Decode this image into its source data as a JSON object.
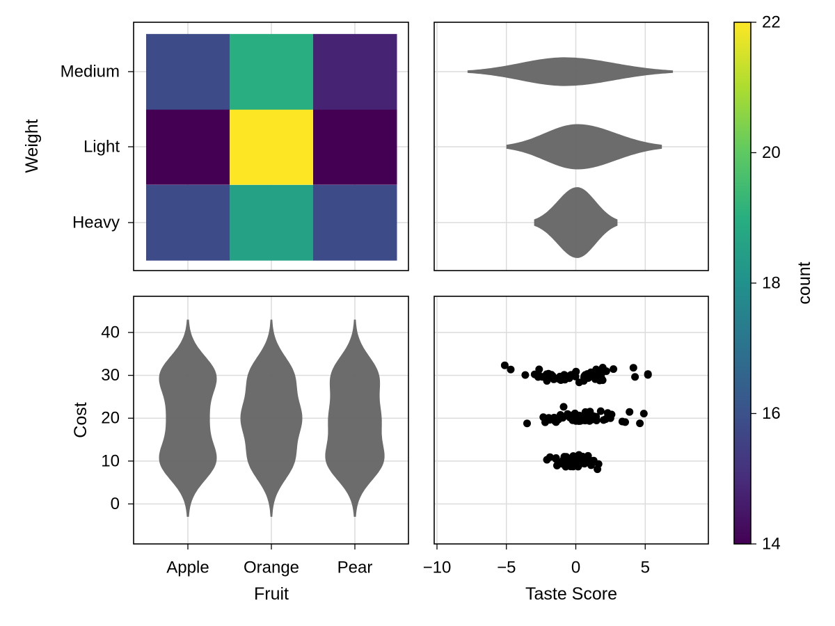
{
  "chart_data": [
    {
      "type": "heatmap",
      "x_categories": [
        "Apple",
        "Orange",
        "Pear"
      ],
      "y_categories": [
        "Heavy",
        "Light",
        "Medium"
      ],
      "ylabel": "Weight",
      "values": [
        [
          15.8,
          18.6,
          15.8
        ],
        [
          14.0,
          22.0,
          14.0
        ],
        [
          15.8,
          19.0,
          14.8
        ]
      ],
      "colormap": "viridis",
      "grid": true
    },
    {
      "type": "violin",
      "orientation": "horizontal",
      "categories": [
        "Heavy",
        "Light",
        "Medium"
      ],
      "x_range": [
        -10,
        9.5
      ],
      "fill": "#666666",
      "series": [
        {
          "category": "Heavy",
          "center": 0.1,
          "min": -3.0,
          "max": 3.0,
          "peak_width": 0.47
        },
        {
          "category": "Light",
          "center": 0.1,
          "min": -5.0,
          "max": 6.2,
          "peak_width": 0.3
        },
        {
          "category": "Medium",
          "center": -0.8,
          "min": -7.8,
          "max": 7.0,
          "peak_width": 0.19
        }
      ],
      "grid": true
    },
    {
      "type": "violin",
      "orientation": "vertical",
      "categories": [
        "Apple",
        "Orange",
        "Pear"
      ],
      "xlabel": "Fruit",
      "ylabel": "Cost",
      "y_ticks": [
        0,
        10,
        20,
        30,
        40
      ],
      "ylim": [
        -9.3,
        48.0
      ],
      "fill": "#666666",
      "series": [
        {
          "category": "Apple",
          "min": -3,
          "max": 43
        },
        {
          "category": "Orange",
          "min": -3,
          "max": 43
        },
        {
          "category": "Pear",
          "min": -3,
          "max": 43
        }
      ],
      "grid": true
    },
    {
      "type": "scatter",
      "xlabel": "Taste Score",
      "x_ticks": [
        -10,
        -5,
        0,
        5
      ],
      "x_tick_labels": [
        "−10",
        "−5",
        "0",
        "5"
      ],
      "x_range": [
        -10,
        9.5
      ],
      "ylim": [
        -9.3,
        48.0
      ],
      "marker_color": "#000000",
      "groups": [
        {
          "cost": 30,
          "x_min": -6.0,
          "x_max": 5.2
        },
        {
          "cost": 20,
          "x_min": -3.9,
          "x_max": 5.0
        },
        {
          "cost": 10,
          "x_min": -2.2,
          "x_max": 2.0
        }
      ],
      "grid": true
    }
  ],
  "colorbar": {
    "label": "count",
    "ticks": [
      14,
      16,
      18,
      20,
      22
    ],
    "range": [
      14,
      22
    ],
    "colormap": "viridis"
  }
}
